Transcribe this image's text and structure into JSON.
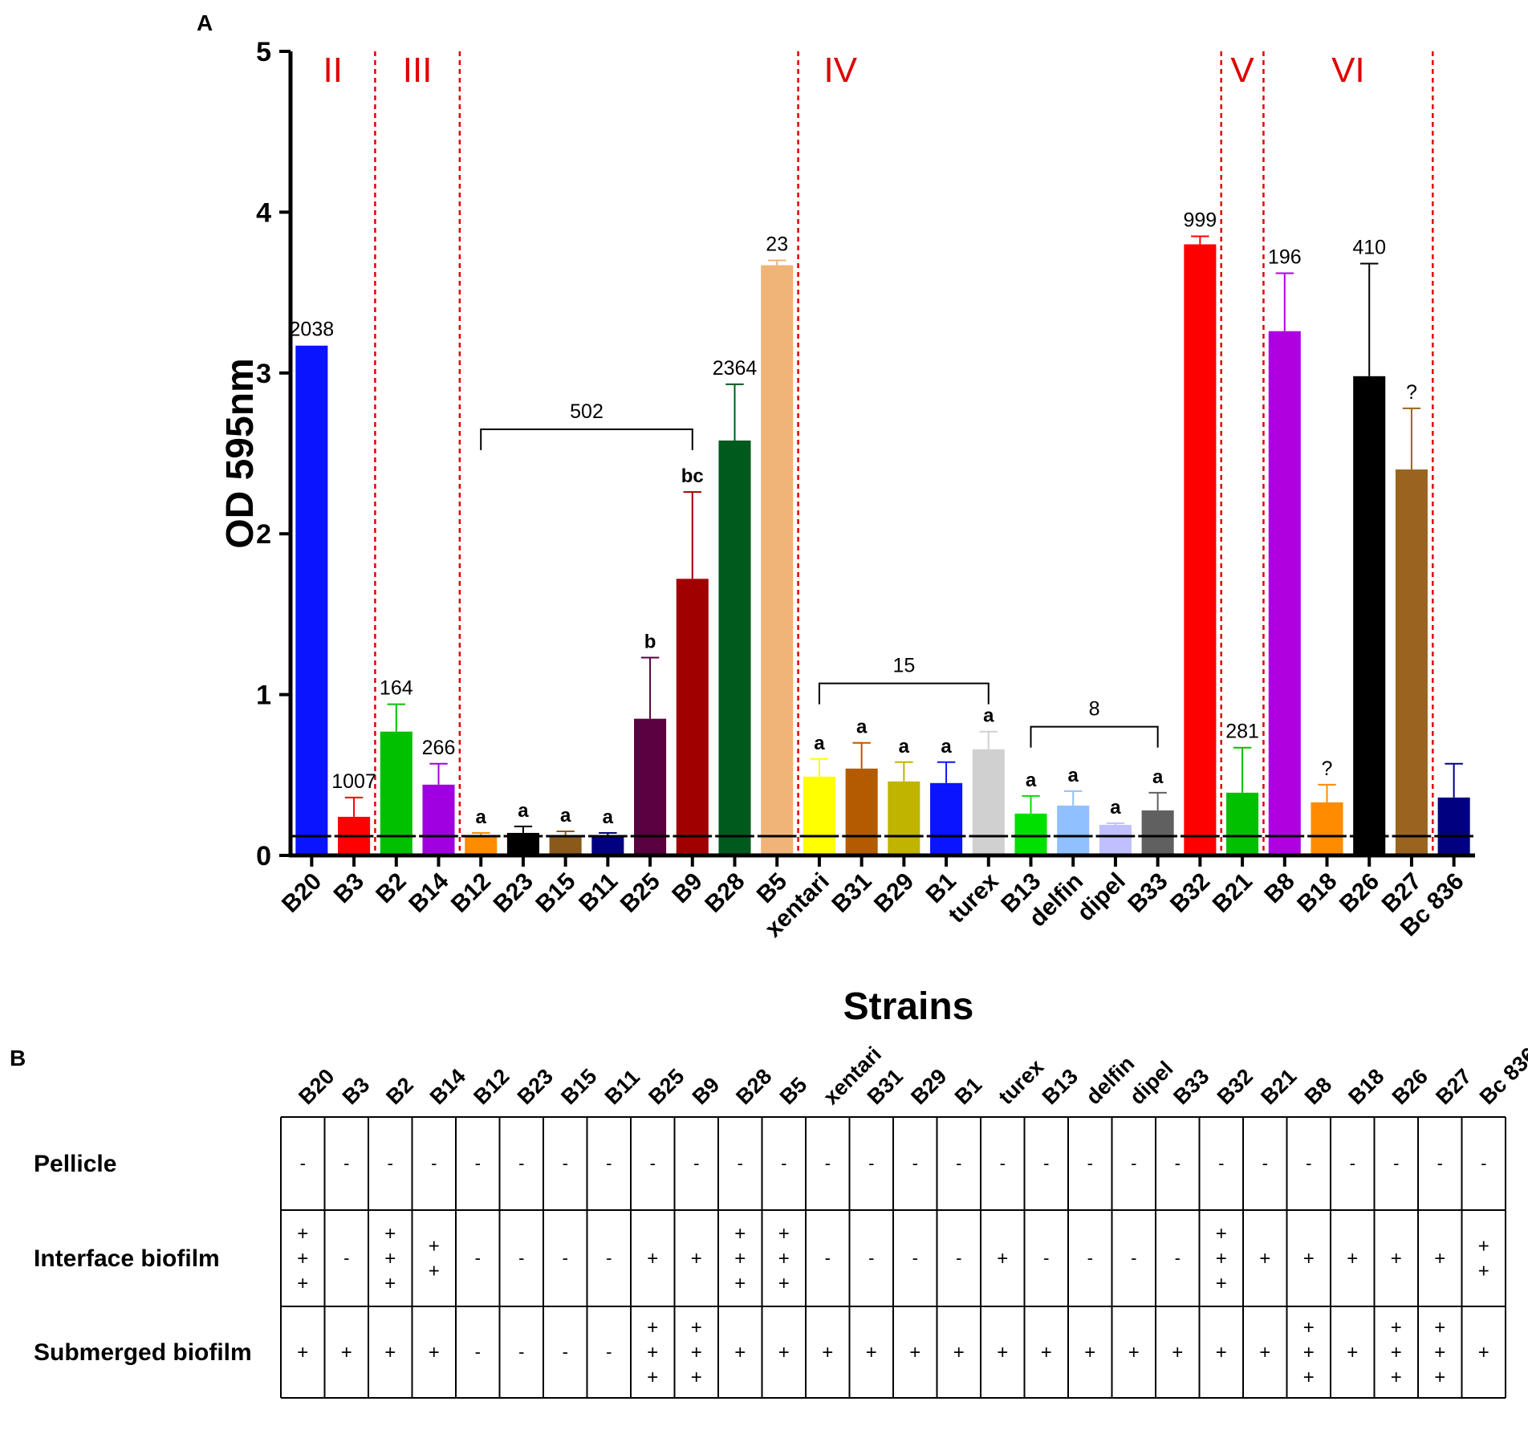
{
  "panels": {
    "a_label": "A",
    "b_label": "B"
  },
  "chart_data": {
    "type": "bar",
    "ylabel": "OD 595nm",
    "xlabel": "Strains",
    "ylim": [
      0,
      5
    ],
    "yticks": [
      "0",
      "1",
      "2",
      "3",
      "4",
      "5"
    ],
    "categories": [
      "B20",
      "B3",
      "B2",
      "B14",
      "B12",
      "B23",
      "B15",
      "B11",
      "B25",
      "B9",
      "B28",
      "B5",
      "xentari",
      "B31",
      "B29",
      "B1",
      "turex",
      "B13",
      "delfin",
      "dipel",
      "B33",
      "B32",
      "B21",
      "B8",
      "B18",
      "B26",
      "B27",
      "Bc 836"
    ],
    "values": [
      3.17,
      0.24,
      0.77,
      0.44,
      0.12,
      0.14,
      0.12,
      0.12,
      0.85,
      1.72,
      2.58,
      3.67,
      0.49,
      0.54,
      0.46,
      0.45,
      0.66,
      0.26,
      0.31,
      0.19,
      0.28,
      3.8,
      0.39,
      3.26,
      0.33,
      2.98,
      2.4,
      0.36
    ],
    "errors": [
      0,
      0.12,
      0.17,
      0.13,
      0.02,
      0.04,
      0.03,
      0.02,
      0.38,
      0.54,
      0.35,
      0.03,
      0.11,
      0.16,
      0.12,
      0.13,
      0.11,
      0.11,
      0.09,
      0.01,
      0.11,
      0.05,
      0.28,
      0.36,
      0.11,
      0.7,
      0.38,
      0.21
    ],
    "colors": [
      "#0a14ff",
      "#ff0000",
      "#00c000",
      "#a000e0",
      "#ff8c00",
      "#000000",
      "#8b5a1a",
      "#000080",
      "#5a0040",
      "#a00000",
      "#005a1e",
      "#f0b478",
      "#ffff00",
      "#b45a00",
      "#c0b400",
      "#0a14ff",
      "#d0d0d0",
      "#00e000",
      "#90c0ff",
      "#c0c0ff",
      "#606060",
      "#ff0000",
      "#00c000",
      "#b000e0",
      "#ff8c00",
      "#000000",
      "#9a6420",
      "#000080"
    ],
    "baseline": 0.12,
    "value_labels": [
      {
        "index": 0,
        "text": "2038",
        "bold": false
      },
      {
        "index": 1,
        "text": "1007",
        "bold": false
      },
      {
        "index": 2,
        "text": "164",
        "bold": false
      },
      {
        "index": 3,
        "text": "266",
        "bold": false
      },
      {
        "index": 4,
        "text": "a",
        "bold": true
      },
      {
        "index": 5,
        "text": "a",
        "bold": true
      },
      {
        "index": 6,
        "text": "a",
        "bold": true
      },
      {
        "index": 7,
        "text": "a",
        "bold": true
      },
      {
        "index": 8,
        "text": "b",
        "bold": true
      },
      {
        "index": 9,
        "text": "bc",
        "bold": true
      },
      {
        "index": 10,
        "text": "2364",
        "bold": false
      },
      {
        "index": 11,
        "text": "23",
        "bold": false
      },
      {
        "index": 12,
        "text": "a",
        "bold": true
      },
      {
        "index": 13,
        "text": "a",
        "bold": true
      },
      {
        "index": 14,
        "text": "a",
        "bold": true
      },
      {
        "index": 15,
        "text": "a",
        "bold": true
      },
      {
        "index": 16,
        "text": "a",
        "bold": true
      },
      {
        "index": 17,
        "text": "a",
        "bold": true
      },
      {
        "index": 18,
        "text": "a",
        "bold": true
      },
      {
        "index": 19,
        "text": "a",
        "bold": true
      },
      {
        "index": 20,
        "text": "a",
        "bold": true
      },
      {
        "index": 21,
        "text": "999",
        "bold": false
      },
      {
        "index": 22,
        "text": "281",
        "bold": false
      },
      {
        "index": 23,
        "text": "196",
        "bold": false
      },
      {
        "index": 24,
        "text": "?",
        "bold": false
      },
      {
        "index": 25,
        "text": "410",
        "bold": false
      },
      {
        "index": 26,
        "text": "?",
        "bold": false
      }
    ],
    "group_dividers_after": [
      1,
      3,
      11,
      21,
      22,
      26
    ],
    "group_labels": [
      {
        "text": "II",
        "from": 0,
        "to": 1
      },
      {
        "text": "III",
        "from": 2,
        "to": 3
      },
      {
        "text": "IV",
        "from": 4,
        "to": 21
      },
      {
        "text": "V",
        "from": 22,
        "to": 22
      },
      {
        "text": "VI",
        "from": 23,
        "to": 26
      }
    ],
    "brackets": [
      {
        "text": "502",
        "from": 4,
        "to": 9,
        "y": 2.65
      },
      {
        "text": "15",
        "from": 12,
        "to": 16,
        "y": 1.07
      },
      {
        "text": "8",
        "from": 17,
        "to": 20,
        "y": 0.8
      }
    ]
  },
  "table": {
    "row_labels": [
      "Pellicle",
      "Interface biofilm",
      "Submerged biofilm"
    ],
    "pellicle": [
      "-",
      "-",
      "-",
      "-",
      "-",
      "-",
      "-",
      "-",
      "-",
      "-",
      "-",
      "-",
      "-",
      "-",
      "-",
      "-",
      "-",
      "-",
      "-",
      "-",
      "-",
      "-",
      "-",
      "-",
      "-",
      "-",
      "-",
      "-"
    ],
    "interface": [
      3,
      0,
      3,
      2,
      0,
      0,
      0,
      0,
      1,
      1,
      3,
      3,
      0,
      0,
      0,
      0,
      1,
      0,
      0,
      0,
      0,
      3,
      1,
      1,
      1,
      1,
      1,
      2
    ],
    "submerged": [
      1,
      1,
      1,
      1,
      0,
      0,
      0,
      0,
      3,
      3,
      1,
      1,
      1,
      1,
      1,
      1,
      1,
      1,
      1,
      1,
      1,
      1,
      1,
      3,
      1,
      3,
      3,
      1
    ]
  }
}
